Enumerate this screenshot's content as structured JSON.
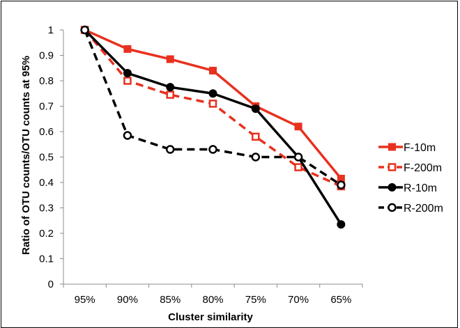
{
  "chart_data": {
    "type": "line",
    "title": "",
    "xlabel": "Cluster similarity",
    "ylabel": "Ratio of OTU counts/OTU counts at 95%",
    "categories": [
      "95%",
      "90%",
      "85%",
      "80%",
      "75%",
      "70%",
      "65%"
    ],
    "ylim": [
      0,
      1
    ],
    "yticks": [
      "0",
      "0.1",
      "0.2",
      "0.3",
      "0.4",
      "0.5",
      "0.6",
      "0.7",
      "0.8",
      "0.9",
      "1"
    ],
    "grid": false,
    "legend_position": "right",
    "series": [
      {
        "name": "F-10m",
        "values": [
          1.0,
          0.925,
          0.885,
          0.84,
          0.7,
          0.62,
          0.415
        ],
        "color": "#e8311f",
        "dashed": false,
        "marker": "square-filled"
      },
      {
        "name": "F-200m",
        "values": [
          1.0,
          0.8,
          0.745,
          0.71,
          0.58,
          0.46,
          0.385
        ],
        "color": "#e8311f",
        "dashed": true,
        "marker": "square-open"
      },
      {
        "name": "R-10m",
        "values": [
          1.0,
          0.83,
          0.775,
          0.75,
          0.69,
          0.5,
          0.235
        ],
        "color": "#000000",
        "dashed": false,
        "marker": "circle-filled"
      },
      {
        "name": "R-200m",
        "values": [
          1.0,
          0.585,
          0.53,
          0.53,
          0.5,
          0.5,
          0.39
        ],
        "color": "#000000",
        "dashed": true,
        "marker": "circle-open"
      }
    ]
  }
}
